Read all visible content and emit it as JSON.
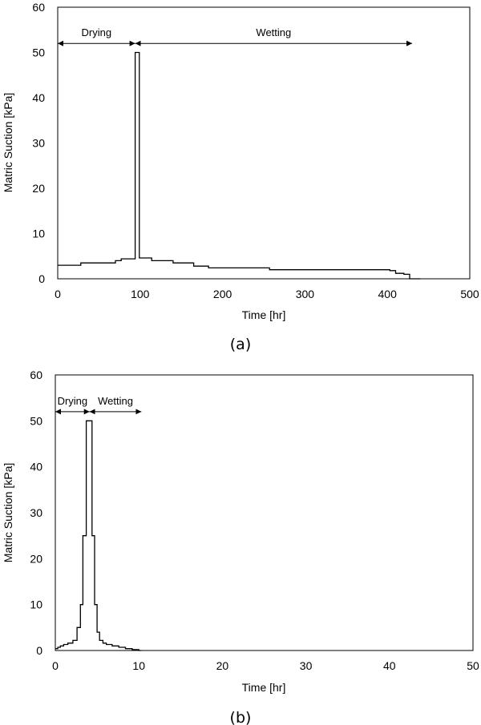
{
  "chart_data": [
    {
      "type": "line",
      "caption": "(a)",
      "xlabel": "Time [hr]",
      "ylabel": "Matric Suction [kPa]",
      "xlim": [
        0,
        500
      ],
      "ylim": [
        0,
        60
      ],
      "xticks": [
        0,
        100,
        200,
        300,
        400,
        500
      ],
      "yticks": [
        0,
        10,
        20,
        30,
        40,
        50,
        60
      ],
      "grid": false,
      "annotations": [
        {
          "label": "Drying",
          "x_start": 0,
          "x_end": 94,
          "y": 52
        },
        {
          "label": "Wetting",
          "x_start": 94,
          "x_end": 430,
          "y": 52
        }
      ],
      "series": [
        {
          "x": [
            0,
            28,
            28,
            70,
            70,
            77,
            77,
            94,
            94,
            99,
            99,
            114,
            114,
            140,
            140,
            165,
            165,
            183,
            183,
            257,
            257,
            403,
            403,
            410,
            410,
            420,
            420,
            427,
            427,
            440
          ],
          "y": [
            3,
            3,
            3.5,
            3.5,
            4,
            4,
            4.4,
            4.4,
            50,
            50,
            4.6,
            4.6,
            4,
            4,
            3.5,
            3.5,
            2.8,
            2.8,
            2.4,
            2.4,
            2,
            2,
            1.8,
            1.8,
            1.2,
            1.2,
            1,
            1,
            0,
            0
          ]
        }
      ]
    },
    {
      "type": "line",
      "caption": "(b)",
      "xlabel": "Time [hr]",
      "ylabel": "Matric Suction [kPa]",
      "xlim": [
        0,
        50
      ],
      "ylim": [
        0,
        60
      ],
      "xticks": [
        0,
        10,
        20,
        30,
        40,
        50
      ],
      "yticks": [
        0,
        10,
        20,
        30,
        40,
        50,
        60
      ],
      "grid": false,
      "annotations": [
        {
          "label": "Drying",
          "x_start": 0,
          "x_end": 4.1,
          "y": 52
        },
        {
          "label": "Wetting",
          "x_start": 4.1,
          "x_end": 10.3,
          "y": 52
        }
      ],
      "series": [
        {
          "x": [
            0,
            0.3,
            0.3,
            0.6,
            0.6,
            1.0,
            1.0,
            1.5,
            1.5,
            2.1,
            2.1,
            2.6,
            2.6,
            3.0,
            3.0,
            3.3,
            3.3,
            3.7,
            3.7,
            4.4,
            4.4,
            4.7,
            4.7,
            5.0,
            5.0,
            5.3,
            5.3,
            5.7,
            5.7,
            6.1,
            6.1,
            6.8,
            6.8,
            7.6,
            7.6,
            8.4,
            8.4,
            9.2,
            9.2,
            10.0,
            10.0,
            10.3
          ],
          "y": [
            0.4,
            0.4,
            0.7,
            0.7,
            1.0,
            1.0,
            1.3,
            1.3,
            1.6,
            1.6,
            2.2,
            2.2,
            5.0,
            5.0,
            10.0,
            10.0,
            25.0,
            25.0,
            50.0,
            50.0,
            25.0,
            25.0,
            10.0,
            10.0,
            4.0,
            4.0,
            2.2,
            2.2,
            1.6,
            1.6,
            1.3,
            1.3,
            1.0,
            1.0,
            0.7,
            0.7,
            0.4,
            0.4,
            0.2,
            0.2,
            0.0,
            0.0
          ]
        }
      ]
    }
  ]
}
